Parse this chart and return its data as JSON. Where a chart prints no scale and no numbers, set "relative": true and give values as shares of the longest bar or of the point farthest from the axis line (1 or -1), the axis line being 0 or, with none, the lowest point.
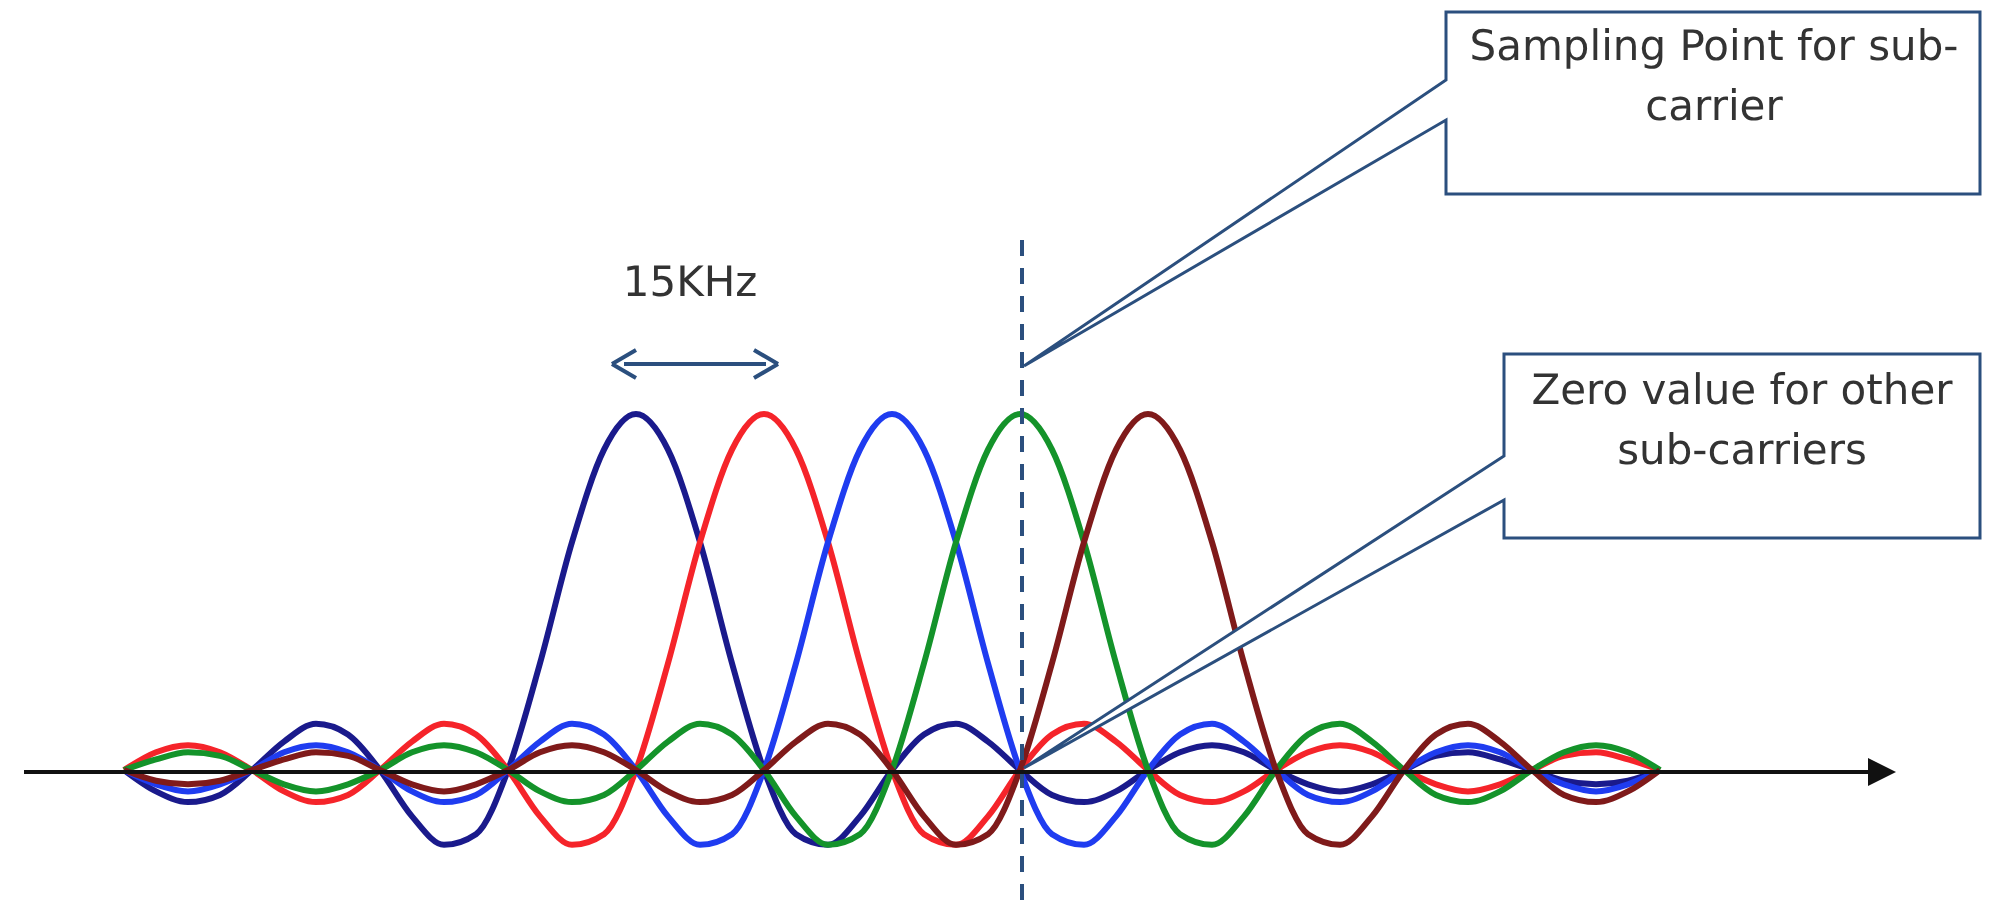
{
  "chart_data": {
    "type": "line",
    "relative": true,
    "categories": [
      null,
      null,
      null,
      null,
      null,
      null,
      null,
      null,
      null,
      null,
      null,
      null,
      null,
      null,
      null,
      null,
      null,
      null,
      null,
      null,
      null,
      null,
      null,
      null,
      null,
      null,
      null,
      null,
      null,
      null,
      null,
      null,
      null,
      null,
      null,
      null,
      null,
      null,
      null,
      null,
      null,
      null,
      null,
      null,
      null,
      null,
      null,
      null,
      null
    ],
    "annotations": [
      "15KHz",
      "Sampling Point for sub-carrier",
      "Zero value for other sub-carriers"
    ],
    "series": [
      {
        "color": "#1a1a8c",
        "values": [
          0,
          -0.06,
          -0.09,
          -0.07,
          0,
          0.08,
          0.13,
          0.1,
          0,
          -0.13,
          -0.21,
          -0.18,
          0,
          0.3,
          0.64,
          0.9,
          1,
          0.9,
          0.64,
          0.3,
          0,
          -0.18,
          -0.21,
          -0.13,
          0,
          0.1,
          0.13,
          0.08,
          0,
          -0.07,
          -0.09,
          -0.06,
          0,
          0.05,
          0.07,
          0.05,
          0,
          -0.04,
          -0.06,
          -0.04,
          0,
          0.04,
          0.05,
          0.03,
          0,
          -0.03,
          -0.04,
          -0.03,
          0
        ]
      },
      {
        "color": "#f5242a",
        "values": [
          0,
          0.05,
          0.07,
          0.05,
          0,
          -0.06,
          -0.09,
          -0.07,
          0,
          0.08,
          0.13,
          0.1,
          0,
          -0.13,
          -0.21,
          -0.18,
          0,
          0.3,
          0.64,
          0.9,
          1,
          0.9,
          0.64,
          0.3,
          0,
          -0.18,
          -0.21,
          -0.13,
          0,
          0.1,
          0.13,
          0.08,
          0,
          -0.07,
          -0.09,
          -0.06,
          0,
          0.05,
          0.07,
          0.05,
          0,
          -0.04,
          -0.06,
          -0.04,
          0,
          0.04,
          0.05,
          0.03,
          0
        ]
      },
      {
        "color": "#1f3cf0",
        "values": [
          0,
          -0.04,
          -0.06,
          -0.04,
          0,
          0.05,
          0.07,
          0.05,
          0,
          -0.06,
          -0.09,
          -0.07,
          0,
          0.08,
          0.13,
          0.1,
          0,
          -0.13,
          -0.21,
          -0.18,
          0,
          0.3,
          0.64,
          0.9,
          1,
          0.9,
          0.64,
          0.3,
          0,
          -0.18,
          -0.21,
          -0.13,
          0,
          0.1,
          0.13,
          0.08,
          0,
          -0.07,
          -0.09,
          -0.06,
          0,
          0.05,
          0.07,
          0.05,
          0,
          -0.04,
          -0.06,
          -0.04,
          0
        ]
      },
      {
        "color": "#14932a",
        "values": [
          0,
          0.03,
          0.05,
          0.04,
          0,
          -0.04,
          -0.06,
          -0.04,
          0,
          0.05,
          0.07,
          0.05,
          0,
          -0.06,
          -0.09,
          -0.07,
          0,
          0.08,
          0.13,
          0.1,
          0,
          -0.13,
          -0.21,
          -0.18,
          0,
          0.3,
          0.64,
          0.9,
          1,
          0.9,
          0.64,
          0.3,
          0,
          -0.18,
          -0.21,
          -0.13,
          0,
          0.1,
          0.13,
          0.08,
          0,
          -0.07,
          -0.09,
          -0.06,
          0,
          0.05,
          0.07,
          0.05,
          0
        ]
      },
      {
        "color": "#7f1a1a",
        "values": [
          0,
          -0.03,
          -0.04,
          -0.03,
          0,
          0.03,
          0.05,
          0.04,
          0,
          -0.04,
          -0.06,
          -0.04,
          0,
          0.05,
          0.07,
          0.05,
          0,
          -0.06,
          -0.09,
          -0.07,
          0,
          0.08,
          0.13,
          0.1,
          0,
          -0.13,
          -0.21,
          -0.18,
          0,
          0.3,
          0.64,
          0.9,
          1,
          0.9,
          0.64,
          0.3,
          0,
          -0.18,
          -0.21,
          -0.13,
          0,
          0.1,
          0.13,
          0.08,
          0,
          -0.07,
          -0.09,
          -0.06,
          0
        ]
      }
    ]
  }
}
